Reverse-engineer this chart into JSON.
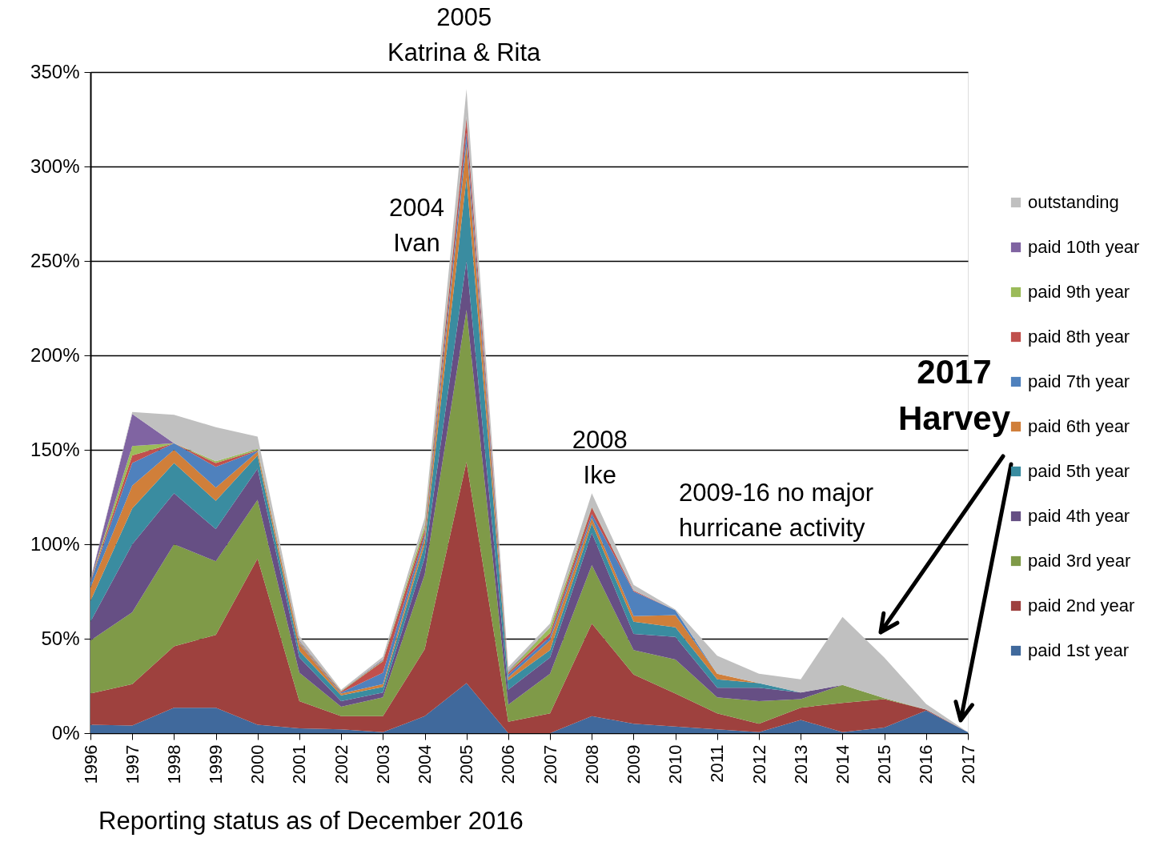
{
  "chart_data": {
    "type": "area",
    "stacked": true,
    "categories": [
      "1996",
      "1997",
      "1998",
      "1999",
      "2000",
      "2001",
      "2002",
      "2003",
      "2004",
      "2005",
      "2006",
      "2007",
      "2008",
      "2009",
      "2010",
      "2011",
      "2012",
      "2013",
      "2014",
      "2015",
      "2016",
      "2017"
    ],
    "series": [
      {
        "name": "paid 1st year",
        "color": "#40699c",
        "values": [
          4.5,
          4,
          13.5,
          13.5,
          4.5,
          2.5,
          2,
          0.5,
          9,
          26.5,
          0,
          0,
          9,
          5,
          3.5,
          2,
          0.5,
          7,
          0.5,
          3,
          12,
          0.5
        ]
      },
      {
        "name": "paid 2nd year",
        "color": "#9e413e",
        "values": [
          16.5,
          22,
          32.5,
          38.5,
          88,
          14.5,
          7,
          8.5,
          35.5,
          117,
          6,
          10.5,
          49,
          26,
          17.5,
          8.5,
          4.5,
          6.5,
          15.5,
          15,
          0.5,
          0
        ]
      },
      {
        "name": "paid 3rd year",
        "color": "#7f9a48",
        "values": [
          28,
          38,
          54,
          39,
          31,
          15,
          5,
          10,
          39.5,
          80.5,
          9,
          21,
          31,
          13,
          18,
          8.5,
          12,
          4.5,
          9.5,
          0.5,
          0,
          0
        ]
      },
      {
        "name": "paid 4th year",
        "color": "#664f84",
        "values": [
          10,
          36,
          27,
          17,
          16.5,
          8,
          3,
          2.5,
          9,
          26,
          8,
          8.5,
          17,
          8.5,
          12,
          5,
          7,
          3.5,
          0,
          0,
          0,
          0
        ]
      },
      {
        "name": "paid 5th year",
        "color": "#3a8ca0",
        "values": [
          11,
          19,
          16,
          15,
          7,
          3.5,
          3,
          3,
          7,
          44,
          5,
          4,
          5,
          6.5,
          5,
          4.5,
          2.5,
          0,
          0,
          0,
          0,
          0
        ]
      },
      {
        "name": "paid 6th year",
        "color": "#d07f3a",
        "values": [
          7,
          12,
          7,
          7,
          2,
          3.5,
          1,
          1.5,
          3,
          18,
          1.5,
          5,
          3,
          3,
          6.5,
          3,
          0,
          0,
          0,
          0,
          0,
          0
        ]
      },
      {
        "name": "paid 7th year",
        "color": "#4f81bd",
        "values": [
          3,
          12,
          3.5,
          11,
          0.5,
          0.5,
          0.5,
          6,
          2,
          6,
          1.5,
          2,
          2,
          13,
          2.5,
          0,
          0,
          0,
          0,
          0,
          0,
          0
        ]
      },
      {
        "name": "paid 8th year",
        "color": "#c0504d",
        "values": [
          0.5,
          4,
          0,
          2,
          0.3,
          0.5,
          0.5,
          6,
          2.5,
          7.5,
          1,
          2,
          3.5,
          0.5,
          0,
          0,
          0,
          0,
          0,
          0,
          0,
          0
        ]
      },
      {
        "name": "paid 9th year",
        "color": "#9bbb59",
        "values": [
          0.3,
          5,
          0,
          1,
          0.7,
          0.5,
          0.3,
          0.5,
          2.5,
          0.5,
          0.5,
          3,
          0.3,
          0,
          0,
          0,
          0,
          0,
          0,
          0,
          0,
          0
        ]
      },
      {
        "name": "paid 10th year",
        "color": "#8064a2",
        "values": [
          0.2,
          17,
          0,
          0,
          0,
          0.5,
          0.2,
          0.5,
          0,
          0.5,
          0.5,
          0,
          0.2,
          0,
          0,
          0,
          0,
          0,
          0,
          0,
          0,
          0
        ]
      },
      {
        "name": "outstanding",
        "color": "#c0c0c0",
        "values": [
          0.5,
          1,
          15,
          18,
          6.5,
          2.5,
          0.5,
          1.5,
          4,
          14.5,
          2,
          2,
          7,
          3,
          0.5,
          9.5,
          5,
          7,
          36,
          21.5,
          3,
          0
        ]
      }
    ],
    "ylim": [
      0,
      350
    ],
    "yticks": [
      {
        "value": 0,
        "label": "0%"
      },
      {
        "value": 50,
        "label": "50%"
      },
      {
        "value": 100,
        "label": "100%"
      },
      {
        "value": 150,
        "label": "150%"
      },
      {
        "value": 200,
        "label": "200%"
      },
      {
        "value": 250,
        "label": "250%"
      },
      {
        "value": 300,
        "label": "300%"
      },
      {
        "value": 350,
        "label": "350%"
      }
    ],
    "grid": "y",
    "legend": "right",
    "annotations": [
      "2005\nKatrina & Rita",
      "2004\nIvan",
      "2008\nIke",
      "2009-16 no major\nhurricane activity",
      "2017\nHarvey",
      "Reporting status as of December 2016"
    ]
  }
}
